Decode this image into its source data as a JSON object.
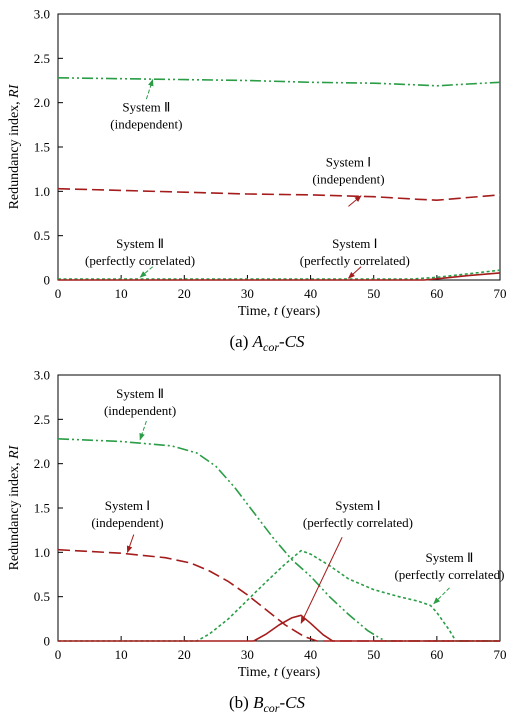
{
  "chart_data": [
    {
      "type": "line",
      "caption": {
        "letter": "(a) ",
        "main": "A",
        "sub": "cor",
        "tail": "-CS"
      },
      "xlabel_prefix": "Time, ",
      "xlabel_var": "t",
      "xlabel_suffix": " (years)",
      "ylabel_prefix": "Redundancy index, ",
      "ylabel_var": "RI",
      "xlim": [
        0,
        70
      ],
      "ylim": [
        0,
        3.0
      ],
      "xticks": [
        "0",
        "10",
        "20",
        "30",
        "40",
        "50",
        "60",
        "70"
      ],
      "yticks": [
        "0",
        "0.5",
        "1.0",
        "1.5",
        "2.0",
        "2.5",
        "3.0"
      ],
      "grid": false,
      "series": [
        {
          "id": "sys2_ind",
          "style": "dashdotdot",
          "color": "#2a9d46",
          "points": [
            [
              0,
              2.28
            ],
            [
              10,
              2.27
            ],
            [
              20,
              2.26
            ],
            [
              30,
              2.25
            ],
            [
              40,
              2.23
            ],
            [
              50,
              2.22
            ],
            [
              57,
              2.2
            ],
            [
              60,
              2.19
            ],
            [
              65,
              2.21
            ],
            [
              70,
              2.23
            ]
          ]
        },
        {
          "id": "sys1_ind",
          "style": "dashed",
          "color": "#a51c1c",
          "points": [
            [
              0,
              1.03
            ],
            [
              10,
              1.01
            ],
            [
              20,
              0.99
            ],
            [
              30,
              0.97
            ],
            [
              40,
              0.96
            ],
            [
              50,
              0.94
            ],
            [
              57,
              0.91
            ],
            [
              60,
              0.9
            ],
            [
              65,
              0.93
            ],
            [
              70,
              0.96
            ]
          ]
        },
        {
          "id": "sys2_cor",
          "style": "dotted",
          "color": "#2a9d46",
          "points": [
            [
              0,
              0.01
            ],
            [
              56,
              0.01
            ],
            [
              60,
              0.03
            ],
            [
              65,
              0.07
            ],
            [
              70,
              0.11
            ]
          ]
        },
        {
          "id": "sys1_cor",
          "style": "solid",
          "color": "#a51c1c",
          "points": [
            [
              0,
              0.0
            ],
            [
              58,
              0.0
            ],
            [
              61,
              0.02
            ],
            [
              65,
              0.05
            ],
            [
              70,
              0.08
            ]
          ]
        }
      ],
      "annotations": [
        {
          "lines": [
            "System Ⅱ",
            "(independent)"
          ],
          "color": "#2a9d46",
          "text_at": [
            14,
            1.9
          ],
          "arrow_from": [
            14,
            2.04
          ],
          "arrow_to": [
            15,
            2.26
          ]
        },
        {
          "lines": [
            "System Ⅰ",
            "(independent)"
          ],
          "color": "#a51c1c",
          "text_at": [
            46,
            1.28
          ],
          "arrow_from": [
            46,
            0.83
          ],
          "arrow_to": [
            48,
            0.95
          ]
        },
        {
          "lines": [
            "System Ⅱ",
            "(perfectly correlated)"
          ],
          "color": "#2a9d46",
          "text_at": [
            13,
            0.36
          ],
          "arrow_from": [
            15,
            0.15
          ],
          "arrow_to": [
            13,
            0.03
          ]
        },
        {
          "lines": [
            "System Ⅰ",
            "(perfectly correlated)"
          ],
          "color": "#a51c1c",
          "text_at": [
            47,
            0.36
          ],
          "arrow_from": [
            48,
            0.15
          ],
          "arrow_to": [
            46,
            0.02
          ]
        }
      ]
    },
    {
      "type": "line",
      "caption": {
        "letter": "(b) ",
        "main": "B",
        "sub": "cor",
        "tail": "-CS"
      },
      "xlabel_prefix": "Time, ",
      "xlabel_var": "t",
      "xlabel_suffix": " (years)",
      "ylabel_prefix": "Redundancy index, ",
      "ylabel_var": "RI",
      "xlim": [
        0,
        70
      ],
      "ylim": [
        0,
        3.0
      ],
      "xticks": [
        "0",
        "10",
        "20",
        "30",
        "40",
        "50",
        "60",
        "70"
      ],
      "yticks": [
        "0",
        "0.5",
        "1.0",
        "1.5",
        "2.0",
        "2.5",
        "3.0"
      ],
      "grid": false,
      "series": [
        {
          "id": "sys2_ind",
          "style": "dashdotdot",
          "color": "#2a9d46",
          "points": [
            [
              0,
              2.28
            ],
            [
              10,
              2.25
            ],
            [
              18,
              2.2
            ],
            [
              22,
              2.12
            ],
            [
              25,
              1.97
            ],
            [
              28,
              1.73
            ],
            [
              31,
              1.45
            ],
            [
              34,
              1.17
            ],
            [
              37,
              0.92
            ],
            [
              40,
              0.73
            ],
            [
              43,
              0.5
            ],
            [
              46,
              0.3
            ],
            [
              49,
              0.12
            ],
            [
              51,
              0.03
            ],
            [
              52,
              0.0
            ],
            [
              70,
              0.0
            ]
          ]
        },
        {
          "id": "sys1_ind",
          "style": "dashed",
          "color": "#a51c1c",
          "points": [
            [
              0,
              1.03
            ],
            [
              10,
              0.99
            ],
            [
              17,
              0.94
            ],
            [
              21,
              0.88
            ],
            [
              24,
              0.79
            ],
            [
              27,
              0.67
            ],
            [
              30,
              0.52
            ],
            [
              33,
              0.35
            ],
            [
              36,
              0.18
            ],
            [
              39,
              0.05
            ],
            [
              41,
              0.0
            ],
            [
              70,
              0.0
            ]
          ]
        },
        {
          "id": "sys2_cor",
          "style": "dotted",
          "color": "#2a9d46",
          "points": [
            [
              0,
              0.0
            ],
            [
              22,
              0.0
            ],
            [
              24,
              0.08
            ],
            [
              27,
              0.25
            ],
            [
              30,
              0.46
            ],
            [
              33,
              0.67
            ],
            [
              36,
              0.87
            ],
            [
              38.5,
              1.02
            ],
            [
              40,
              0.98
            ],
            [
              43,
              0.85
            ],
            [
              46,
              0.7
            ],
            [
              50,
              0.58
            ],
            [
              54,
              0.5
            ],
            [
              57,
              0.45
            ],
            [
              59,
              0.4
            ],
            [
              60,
              0.32
            ],
            [
              62,
              0.12
            ],
            [
              63,
              0.0
            ],
            [
              70,
              0.0
            ]
          ]
        },
        {
          "id": "sys1_cor",
          "style": "solid",
          "color": "#a51c1c",
          "points": [
            [
              0,
              0.0
            ],
            [
              31,
              0.0
            ],
            [
              33,
              0.08
            ],
            [
              35,
              0.18
            ],
            [
              37,
              0.26
            ],
            [
              38.5,
              0.29
            ],
            [
              40,
              0.2
            ],
            [
              42,
              0.07
            ],
            [
              43.5,
              0.0
            ],
            [
              70,
              0.0
            ]
          ]
        }
      ],
      "annotations": [
        {
          "lines": [
            "System Ⅱ",
            "(independent)"
          ],
          "color": "#2a9d46",
          "text_at": [
            13,
            2.74
          ],
          "arrow_from": [
            14,
            2.48
          ],
          "arrow_to": [
            13,
            2.27
          ]
        },
        {
          "lines": [
            "System Ⅰ",
            "(independent)"
          ],
          "color": "#a51c1c",
          "text_at": [
            11,
            1.48
          ],
          "arrow_from": [
            12,
            1.2
          ],
          "arrow_to": [
            11,
            1.0
          ]
        },
        {
          "lines": [
            "System Ⅰ",
            "(perfectly correlated)"
          ],
          "color": "#a51c1c",
          "text_at": [
            47.5,
            1.48
          ],
          "arrow_from": [
            45,
            1.17
          ],
          "arrow_to": [
            38.5,
            0.2
          ]
        },
        {
          "lines": [
            "System Ⅱ",
            "(perfectly correlated)"
          ],
          "color": "#2a9d46",
          "text_at": [
            62,
            0.89
          ],
          "arrow_from": [
            62,
            0.6
          ],
          "arrow_to": [
            59.5,
            0.42
          ]
        }
      ]
    }
  ]
}
